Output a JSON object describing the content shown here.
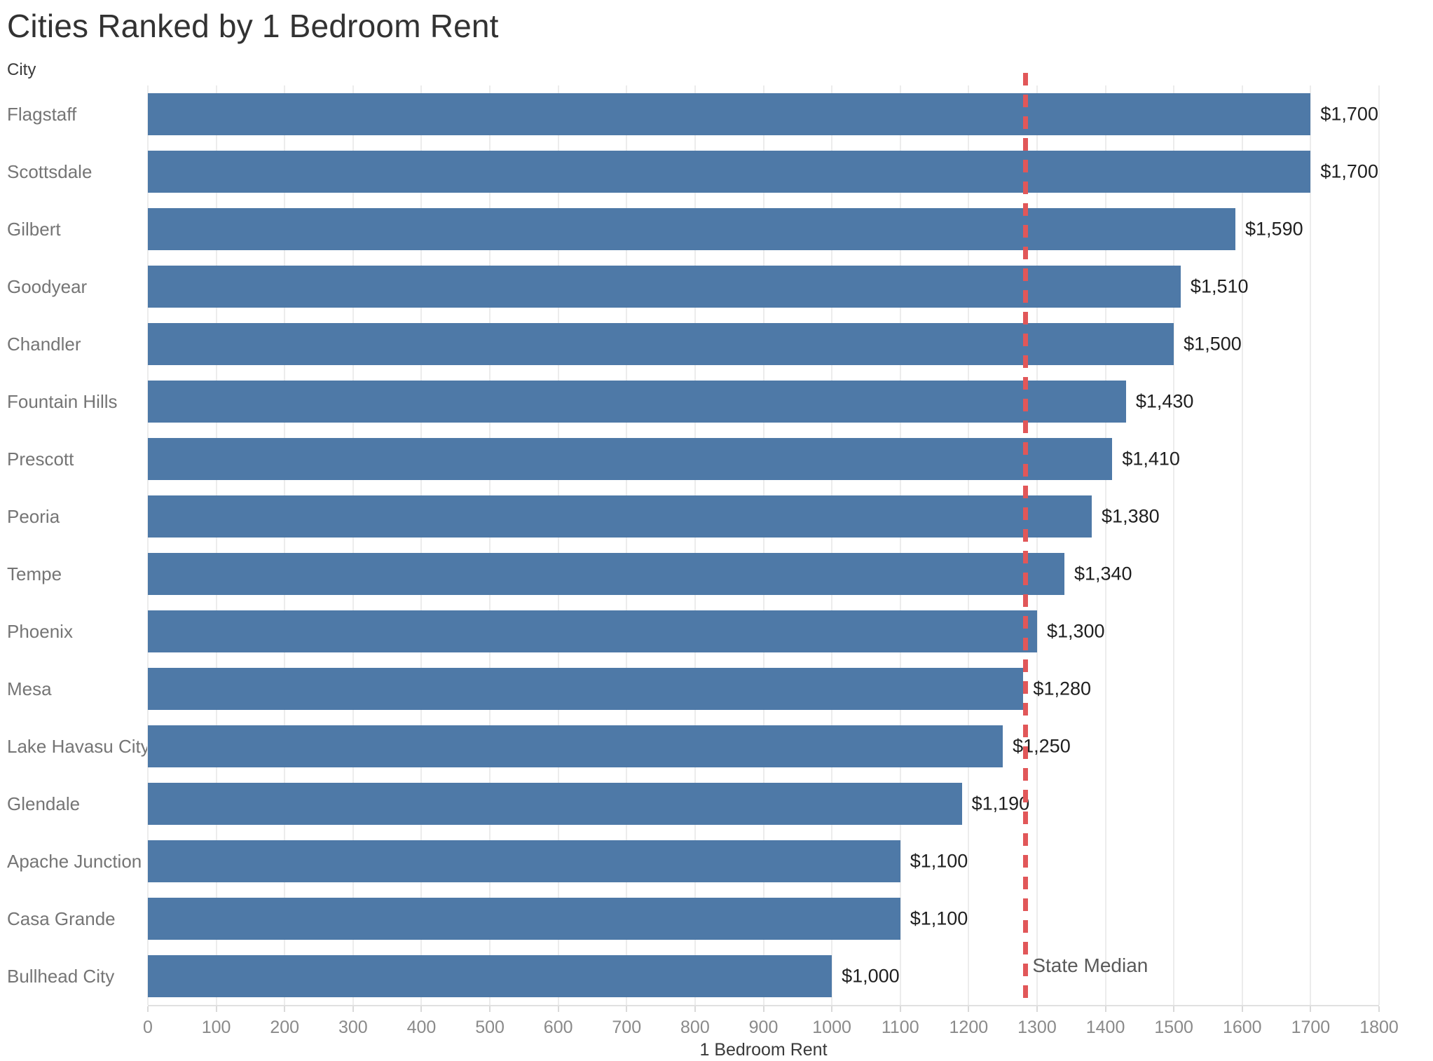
{
  "page": {
    "title": "Cities Ranked by 1 Bedroom Rent"
  },
  "chart_data": {
    "type": "bar",
    "orientation": "horizontal",
    "title": "Cities Ranked by 1 Bedroom Rent",
    "categories_label": "City",
    "xlabel": "1 Bedroom Rent",
    "categories": [
      "Flagstaff",
      "Scottsdale",
      "Gilbert",
      "Goodyear",
      "Chandler",
      "Fountain Hills",
      "Prescott",
      "Peoria",
      "Tempe",
      "Phoenix",
      "Mesa",
      "Lake Havasu City",
      "Glendale",
      "Apache Junction",
      "Casa Grande",
      "Bullhead City"
    ],
    "values": [
      1700,
      1700,
      1590,
      1510,
      1500,
      1430,
      1410,
      1380,
      1340,
      1300,
      1280,
      1250,
      1190,
      1100,
      1100,
      1000
    ],
    "value_labels": [
      "$1,700",
      "$1,700",
      "$1,590",
      "$1,510",
      "$1,500",
      "$1,430",
      "$1,410",
      "$1,380",
      "$1,340",
      "$1,300",
      "$1,280",
      "$1,250",
      "$1,190",
      "$1,100",
      "$1,100",
      "$1,000"
    ],
    "xlim": [
      0,
      1800
    ],
    "xticks": [
      0,
      100,
      200,
      300,
      400,
      500,
      600,
      700,
      800,
      900,
      1000,
      1100,
      1200,
      1300,
      1400,
      1500,
      1600,
      1700,
      1800
    ],
    "grid": "vertical",
    "legend": "none",
    "reference_line": {
      "label": "State Median",
      "value": 1283,
      "style": "dashed",
      "color": "#e15759"
    },
    "bar_color": "#4e79a7",
    "gridline_color": "#ececec"
  }
}
